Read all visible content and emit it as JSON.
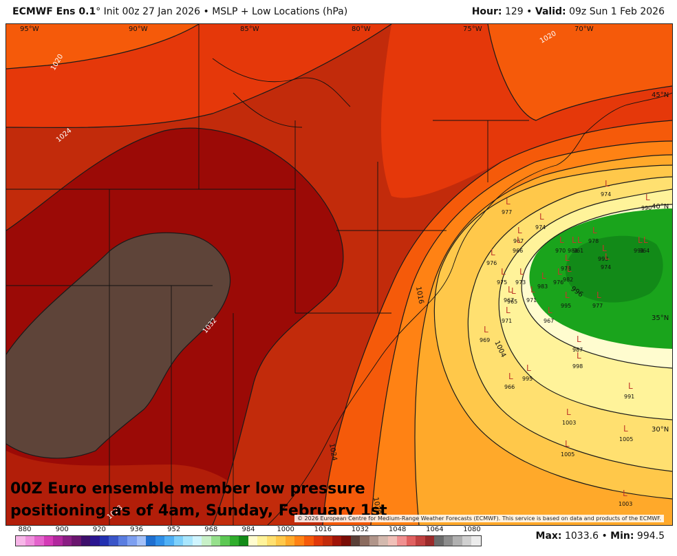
{
  "header": {
    "model": "ECMWF Ens 0.1",
    "degree": "°",
    "init": "Init 00z 27 Jan 2026",
    "bullet": "•",
    "product": "MSLP + Low Locations (hPa)",
    "hour_label": "Hour:",
    "hour_value": "129",
    "valid_label": "Valid:",
    "valid_value": "09z Sun 1 Feb 2026"
  },
  "map": {
    "longitudes": [
      "95°W",
      "90°W",
      "85°W",
      "80°W",
      "75°W",
      "70°W"
    ],
    "latitudes": [
      "45°N",
      "40°N",
      "35°N",
      "30°N"
    ],
    "isobar_labels": [
      "1020",
      "1024",
      "1032",
      "1020",
      "1016",
      "1004",
      "996",
      "1024",
      "1020",
      "1024",
      "1028"
    ],
    "lows": [
      {
        "value": "977"
      },
      {
        "value": "974"
      },
      {
        "value": "990"
      },
      {
        "value": "974"
      },
      {
        "value": "967"
      },
      {
        "value": "978"
      },
      {
        "value": "976"
      },
      {
        "value": "966"
      },
      {
        "value": "970"
      },
      {
        "value": "981"
      },
      {
        "value": "961"
      },
      {
        "value": "993"
      },
      {
        "value": "974"
      },
      {
        "value": "991"
      },
      {
        "value": "964"
      },
      {
        "value": "975"
      },
      {
        "value": "973"
      },
      {
        "value": "978"
      },
      {
        "value": "976"
      },
      {
        "value": "982"
      },
      {
        "value": "967"
      },
      {
        "value": "965"
      },
      {
        "value": "971"
      },
      {
        "value": "983"
      },
      {
        "value": "995"
      },
      {
        "value": "977"
      },
      {
        "value": "971"
      },
      {
        "value": "967"
      },
      {
        "value": "969"
      },
      {
        "value": "987"
      },
      {
        "value": "998"
      },
      {
        "value": "966"
      },
      {
        "value": "995"
      },
      {
        "value": "991"
      },
      {
        "value": "1003"
      },
      {
        "value": "1005"
      },
      {
        "value": "1005"
      },
      {
        "value": "1003"
      }
    ],
    "overlay_line1": "00Z Euro ensemble member low pressure",
    "overlay_line2": "positioning as of 4am, Sunday, February 1st",
    "credit": "© 2026 European Centre for Medium-Range Weather Forecasts (ECMWF). This service is based on data and products of the ECMWF."
  },
  "colorbar": {
    "ticks": [
      "880",
      "900",
      "920",
      "936",
      "952",
      "968",
      "984",
      "1000",
      "1016",
      "1032",
      "1048",
      "1064",
      "1080"
    ],
    "colors": [
      "#f7b6e8",
      "#ef8fdc",
      "#e463cc",
      "#d43ab6",
      "#b1279d",
      "#8a1d83",
      "#6a156e",
      "#3d0f6b",
      "#2a1590",
      "#2230b0",
      "#3a55c8",
      "#5a7de0",
      "#7d9ff0",
      "#a3c0f8",
      "#1f6fd0",
      "#2f8fe8",
      "#4fb0f5",
      "#7dd0fb",
      "#a9e6fd",
      "#cff4fe",
      "#c8f0c8",
      "#96e08c",
      "#5cc853",
      "#2fad2c",
      "#128a18",
      "#fffccf",
      "#fff39a",
      "#ffe070",
      "#ffc84a",
      "#ffa92a",
      "#ff8214",
      "#f55a0a",
      "#e0380a",
      "#c22b0b",
      "#a01408",
      "#7a0c06",
      "#5a4038",
      "#8a6b5e",
      "#b0958a",
      "#d3b9ae",
      "#f0c0b8",
      "#f09090",
      "#e06060",
      "#c04040",
      "#9a2a2a",
      "#6a6a6a",
      "#8c8c8c",
      "#b0b0b0",
      "#d0d0d0",
      "#ececec"
    ]
  },
  "stats": {
    "max_label": "Max:",
    "max_value": "1033.6",
    "min_label": "Min:",
    "min_value": "994.5"
  },
  "legend_colors": {
    "brown": "#5e4439",
    "maroon": "#9b0a06",
    "dark_red": "#c22b0b",
    "red": "#e5380a",
    "orange_red": "#f55a0a",
    "orange": "#ff8214",
    "light_orange": "#ffa92a",
    "yellow_orange": "#ffc84a",
    "yellow": "#ffe070",
    "pale_yellow": "#fff39a",
    "cream": "#fffccf",
    "green": "#1aa41c",
    "dark_green": "#128a18",
    "low_marker": "#c0392b"
  }
}
